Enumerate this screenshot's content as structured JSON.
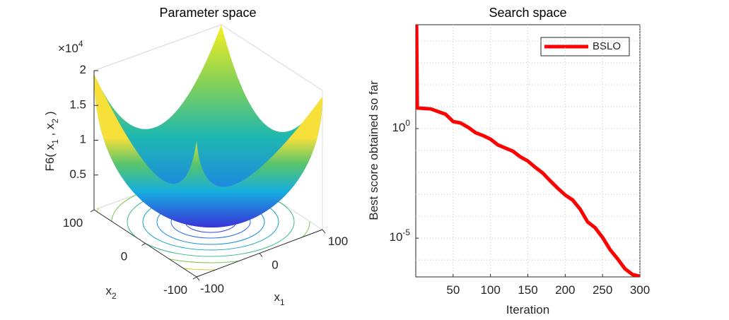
{
  "chart_data": [
    {
      "type": "surface",
      "title": "Parameter space",
      "xlabel": "x_1",
      "ylabel": "x_2",
      "zlabel": "F6( x_1 , x_2 )",
      "zexponent": "×10^4",
      "xlim": [
        -100,
        100
      ],
      "xticks": [
        -100,
        0,
        100
      ],
      "ylim": [
        -100,
        100
      ],
      "yticks": [
        -100,
        0,
        100
      ],
      "zlim": [
        0,
        20000
      ],
      "zticks": [
        {
          "value": 5000,
          "label": "0.5"
        },
        {
          "value": 10000,
          "label": "1"
        },
        {
          "value": 15000,
          "label": "1.5"
        },
        {
          "value": 20000,
          "label": "2"
        }
      ]
    },
    {
      "type": "line",
      "title": "Search space",
      "xlabel": "Iteration",
      "ylabel": "Best score obtained so far",
      "log_y": true,
      "grid": true,
      "legend": "northeast",
      "xlim": [
        0,
        300
      ],
      "xticks": [
        50,
        100,
        150,
        200,
        250,
        300
      ],
      "ylim": [
        1.7e-07,
        55000
      ],
      "yticks": [
        {
          "value": 1e-05,
          "label": "10^{-5}"
        },
        {
          "value": 1,
          "label": "10^0"
        }
      ],
      "yminorticks": [
        1e-06,
        1e-05,
        0.0001,
        0.001,
        0.01,
        0.1,
        1,
        10,
        100,
        1000,
        10000
      ],
      "x": [
        1,
        2,
        20,
        40,
        50,
        60,
        70,
        80,
        90,
        100,
        110,
        120,
        130,
        140,
        150,
        160,
        170,
        180,
        190,
        200,
        210,
        220,
        230,
        240,
        250,
        260,
        270,
        280,
        290,
        300
      ],
      "series": [
        {
          "name": "BSLO",
          "color": "#ff0000",
          "values": [
            100000,
            8.7,
            7.9,
            4.5,
            2.1,
            1.8,
            1.15,
            0.65,
            0.48,
            0.33,
            0.18,
            0.13,
            0.093,
            0.051,
            0.033,
            0.017,
            0.0093,
            0.0041,
            0.0019,
            0.00093,
            0.00055,
            0.00021,
            5.5e-05,
            3e-05,
            1.07e-05,
            3e-06,
            1.15e-06,
            4e-07,
            2.2e-07,
            1.8e-07
          ]
        }
      ]
    }
  ]
}
